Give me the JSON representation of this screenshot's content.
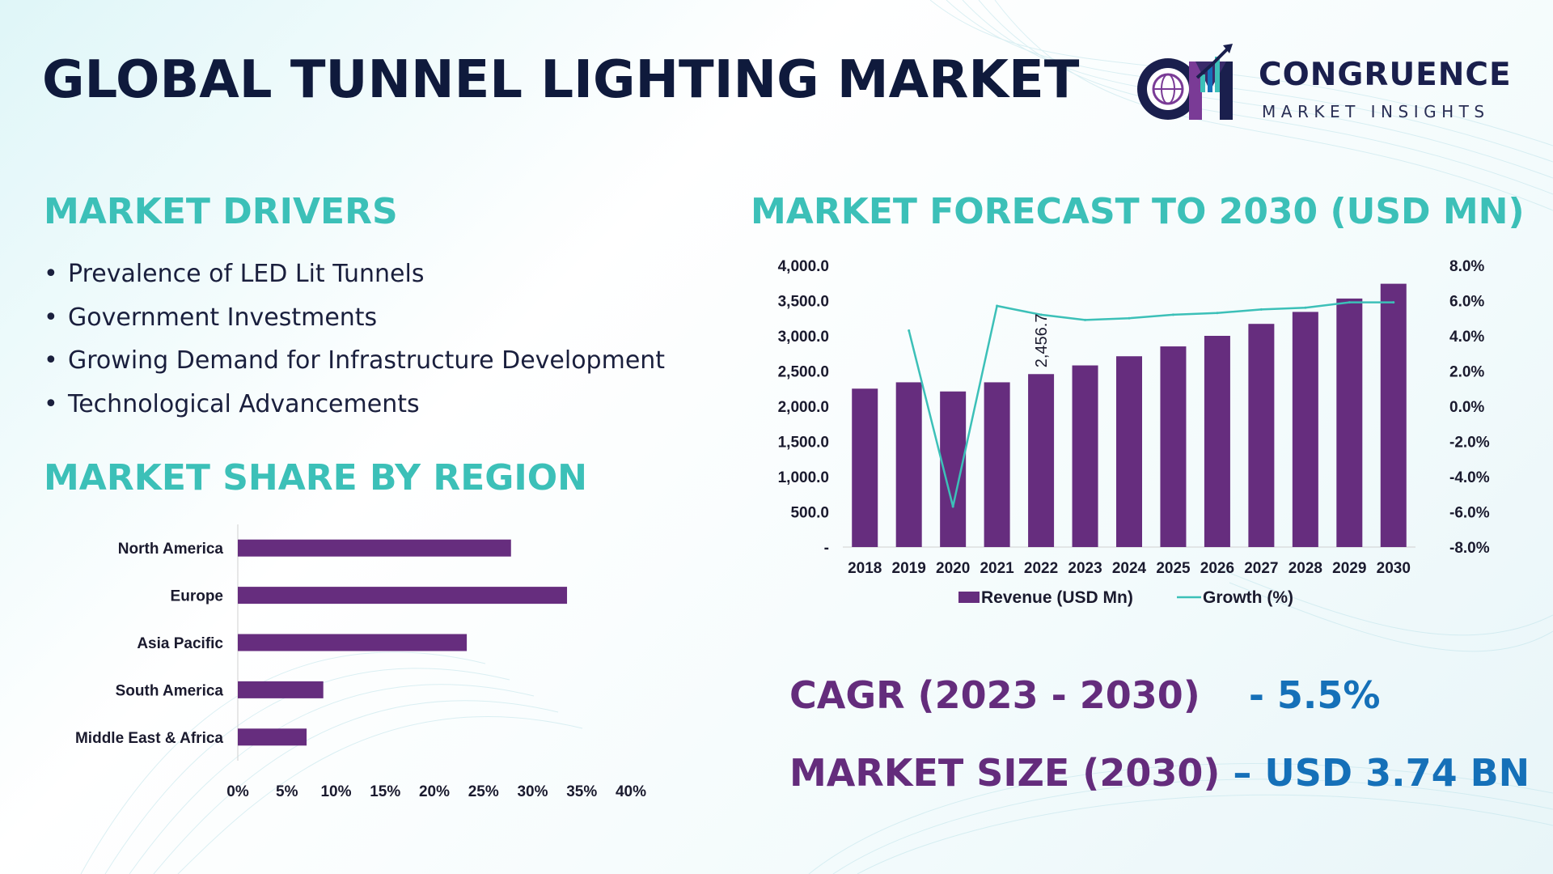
{
  "title": "GLOBAL TUNNEL LIGHTING MARKET",
  "logo": {
    "line1": "CONGRUENCE",
    "line2": "MARKET INSIGHTS",
    "icon": "cm-globe-logo-icon"
  },
  "drivers": {
    "title": "MARKET DRIVERS",
    "bullet": "•",
    "items": [
      "Prevalence of LED Lit Tunnels",
      "Government Investments",
      "Growing Demand for Infrastructure Development",
      "Technological Advancements"
    ]
  },
  "region_title": "MARKET SHARE BY REGION",
  "forecast_title": "MARKET FORECAST TO 2030 (USD MN)",
  "stats": {
    "cagr_label": "CAGR (2023 - 2030)",
    "cagr_value": "- 5.5%",
    "size_label": "MARKET SIZE (2030)",
    "size_value": "– USD 3.74 BN"
  },
  "colors": {
    "bar": "#662d7e",
    "line": "#3cc0b8",
    "title": "#0f1a3c",
    "accent": "#3cc0b8",
    "stat_label": "#642c7c",
    "stat_value": "#1570b8"
  },
  "chart_data": [
    {
      "type": "bar",
      "orientation": "horizontal",
      "title": "MARKET SHARE BY REGION",
      "categories": [
        "North America",
        "Europe",
        "Asia Pacific",
        "South America",
        "Middle East & Africa"
      ],
      "values": [
        27.8,
        33.5,
        23.3,
        8.7,
        7.0
      ],
      "xlim": [
        0,
        40
      ],
      "xticks": [
        "0%",
        "5%",
        "10%",
        "15%",
        "20%",
        "25%",
        "30%",
        "35%",
        "40%"
      ],
      "grid": false
    },
    {
      "type": "bar",
      "title": "MARKET FORECAST TO 2030 (USD MN)",
      "categories": [
        "2018",
        "2019",
        "2020",
        "2021",
        "2022",
        "2023",
        "2024",
        "2025",
        "2026",
        "2027",
        "2028",
        "2029",
        "2030"
      ],
      "series": [
        {
          "name": "Revenue (USD Mn)",
          "type": "bar",
          "axis": "left",
          "values": [
            2250,
            2340,
            2210,
            2340,
            2456.7,
            2580,
            2710,
            2850,
            3000,
            3170,
            3340,
            3530,
            3740
          ]
        },
        {
          "name": "Growth (%)",
          "type": "line",
          "axis": "right",
          "values": [
            null,
            4.3,
            -5.7,
            5.7,
            5.2,
            4.9,
            5.0,
            5.2,
            5.3,
            5.5,
            5.6,
            5.9,
            5.9
          ]
        }
      ],
      "ylim_left": [
        0,
        4000
      ],
      "yticks_left": [
        "-",
        "500.0",
        "1,000.0",
        "1,500.0",
        "2,000.0",
        "2,500.0",
        "3,000.0",
        "3,500.0",
        "4,000.0"
      ],
      "ylim_right": [
        -8,
        8
      ],
      "yticks_right": [
        "-8.0%",
        "-6.0%",
        "-4.0%",
        "-2.0%",
        "0.0%",
        "2.0%",
        "4.0%",
        "6.0%",
        "8.0%"
      ],
      "annotation": {
        "category": "2022",
        "label": "2,456.7"
      },
      "legend": "bottom"
    }
  ]
}
